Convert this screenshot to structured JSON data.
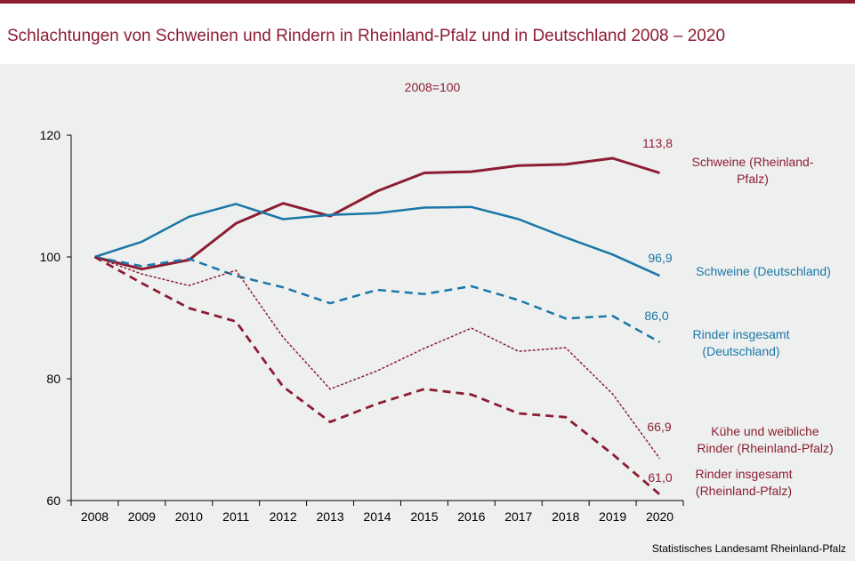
{
  "title": "Schlachtungen von Schweinen und Rindern in Rheinland-Pfalz und in Deutschland 2008 – 2020",
  "source": "Statistisches Landesamt Rheinland-Pfalz",
  "colors": {
    "wine": "#8c1d33",
    "blue": "#1a77a7",
    "background": "#eef0ef"
  },
  "chart_data": {
    "type": "line",
    "subtitle": "2008=100",
    "x": [
      "2008",
      "2009",
      "2010",
      "2011",
      "2012",
      "2013",
      "2014",
      "2015",
      "2016",
      "2017",
      "2018",
      "2019",
      "2020"
    ],
    "ylim": [
      60,
      120
    ],
    "yticks": [
      60,
      80,
      100,
      120
    ],
    "grid": false,
    "series": [
      {
        "name": "Schweine (Rheinland-Pfalz)",
        "label_lines": [
          "Schweine (Rheinland-",
          "Pfalz)"
        ],
        "end_label": "113,8",
        "color": "#8c1d33",
        "style": "solid",
        "values": [
          100.0,
          98.0,
          99.5,
          105.5,
          108.8,
          106.7,
          110.8,
          113.8,
          114.0,
          115.0,
          115.2,
          116.2,
          113.8
        ]
      },
      {
        "name": "Schweine (Deutschland)",
        "label_lines": [
          "Schweine (Deutschland)"
        ],
        "end_label": "96,9",
        "color": "#1a77a7",
        "style": "solid",
        "values": [
          100.0,
          102.5,
          106.6,
          108.7,
          106.2,
          106.9,
          107.2,
          108.1,
          108.2,
          106.2,
          103.2,
          100.4,
          96.9
        ]
      },
      {
        "name": "Rinder insgesamt (Deutschland)",
        "label_lines": [
          "Rinder insgesamt",
          "(Deutschland)"
        ],
        "end_label": "86,0",
        "color": "#1a77a7",
        "style": "dashed",
        "values": [
          100.0,
          98.5,
          99.7,
          96.9,
          95.0,
          92.4,
          94.6,
          93.9,
          95.2,
          92.9,
          89.9,
          90.3,
          86.0
        ]
      },
      {
        "name": "Kühe und weibliche Rinder (Rheinland-Pfalz)",
        "label_lines": [
          "Kühe und weibliche",
          "Rinder (Rheinland-Pfalz)"
        ],
        "end_label": "66,9",
        "color": "#8c1d33",
        "style": "dotted",
        "values": [
          100.0,
          97.2,
          95.3,
          97.8,
          86.8,
          78.3,
          81.3,
          85.0,
          88.3,
          84.5,
          85.1,
          77.5,
          66.9
        ]
      },
      {
        "name": "Rinder insgesamt (Rheinland-Pfalz)",
        "label_lines": [
          "Rinder insgesamt",
          "(Rheinland-Pfalz)"
        ],
        "end_label": "61,0",
        "color": "#8c1d33",
        "style": "dashed",
        "values": [
          100.0,
          95.7,
          91.6,
          89.4,
          78.7,
          72.9,
          75.9,
          78.3,
          77.4,
          74.3,
          73.7,
          67.6,
          61.0
        ]
      }
    ]
  }
}
